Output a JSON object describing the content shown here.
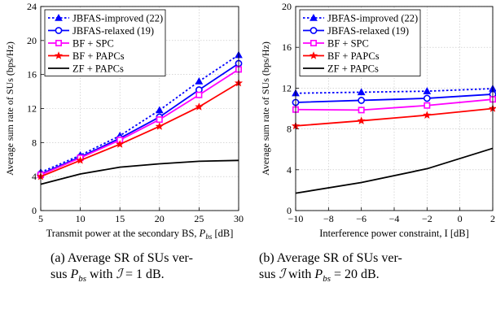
{
  "chart_data": [
    {
      "type": "line",
      "caption": [
        "(a) Average SR of SUs ver-",
        "sus Pₐₛ with ℐ = 1 dB."
      ],
      "caption_lines": [
        "(a) Average SR of SUs ver-",
        "sus Pbs with I = 1 dB."
      ],
      "xlabel": "Transmit power at the secondary BS, P",
      "xlabel_sub": "bs",
      "xlabel_unit": " [dB]",
      "ylabel": "Average sum rate of SUs (bps/Hz)",
      "xlim": [
        5,
        30
      ],
      "ylim": [
        0,
        24
      ],
      "xticks": [
        "5",
        "10",
        "15",
        "20",
        "25",
        "30"
      ],
      "yticks": [
        "0",
        "4",
        "8",
        "12",
        "16",
        "20",
        "24"
      ],
      "grid": true,
      "legend_position": "top-left",
      "x": [
        5,
        10,
        15,
        20,
        25,
        30
      ],
      "series": [
        {
          "name": "JBFAS-improved (22)",
          "color": "#0000ff",
          "dash": "dotted",
          "marker": "triangle",
          "values": [
            4.5,
            6.5,
            8.8,
            11.8,
            15.2,
            18.3
          ]
        },
        {
          "name": "JBFAS-relaxed (19)",
          "color": "#0000ff",
          "dash": "solid",
          "marker": "circle",
          "values": [
            4.3,
            6.3,
            8.5,
            11.0,
            14.2,
            17.3
          ]
        },
        {
          "name": "BF + SPC",
          "color": "#ff00ff",
          "dash": "solid",
          "marker": "square",
          "values": [
            4.2,
            6.2,
            8.3,
            10.7,
            13.6,
            16.6
          ]
        },
        {
          "name": "BF + PAPCs",
          "color": "#ff0000",
          "dash": "solid",
          "marker": "star",
          "values": [
            4.0,
            5.9,
            7.8,
            9.9,
            12.2,
            15.0
          ]
        },
        {
          "name": "ZF + PAPCs",
          "color": "#000000",
          "dash": "solid",
          "marker": "none",
          "values": [
            3.1,
            4.3,
            5.1,
            5.5,
            5.8,
            5.9
          ]
        }
      ]
    },
    {
      "type": "line",
      "caption_lines": [
        "(b) Average SR of SUs ver-",
        "sus I with Pbs = 20 dB."
      ],
      "xlabel": "Interference power constraint, I [dB]",
      "ylabel": "Average sum rate of SUs (bps/Hz)",
      "xlim": [
        -10,
        2
      ],
      "ylim": [
        0,
        20
      ],
      "xticks": [
        "−10",
        "−8",
        "−6",
        "−4",
        "−2",
        "0",
        "2"
      ],
      "yticks": [
        "0",
        "4",
        "8",
        "12",
        "16",
        "20"
      ],
      "grid": true,
      "legend_position": "top-left",
      "x": [
        -10,
        -6,
        -2,
        2
      ],
      "series": [
        {
          "name": "JBFAS-improved (22)",
          "color": "#0000ff",
          "dash": "dotted",
          "marker": "triangle",
          "values": [
            11.5,
            11.6,
            11.7,
            11.95
          ]
        },
        {
          "name": "JBFAS-relaxed (19)",
          "color": "#0000ff",
          "dash": "solid",
          "marker": "circle",
          "values": [
            10.6,
            10.8,
            11.0,
            11.4
          ]
        },
        {
          "name": "BF + SPC",
          "color": "#ff00ff",
          "dash": "solid",
          "marker": "square",
          "values": [
            9.9,
            9.85,
            10.3,
            10.9
          ]
        },
        {
          "name": "BF + PAPCs",
          "color": "#ff0000",
          "dash": "solid",
          "marker": "star",
          "values": [
            8.3,
            8.8,
            9.35,
            10.0
          ]
        },
        {
          "name": "ZF + PAPCs",
          "color": "#000000",
          "dash": "solid",
          "marker": "none",
          "values": [
            1.7,
            2.75,
            4.1,
            6.1
          ]
        }
      ]
    }
  ]
}
